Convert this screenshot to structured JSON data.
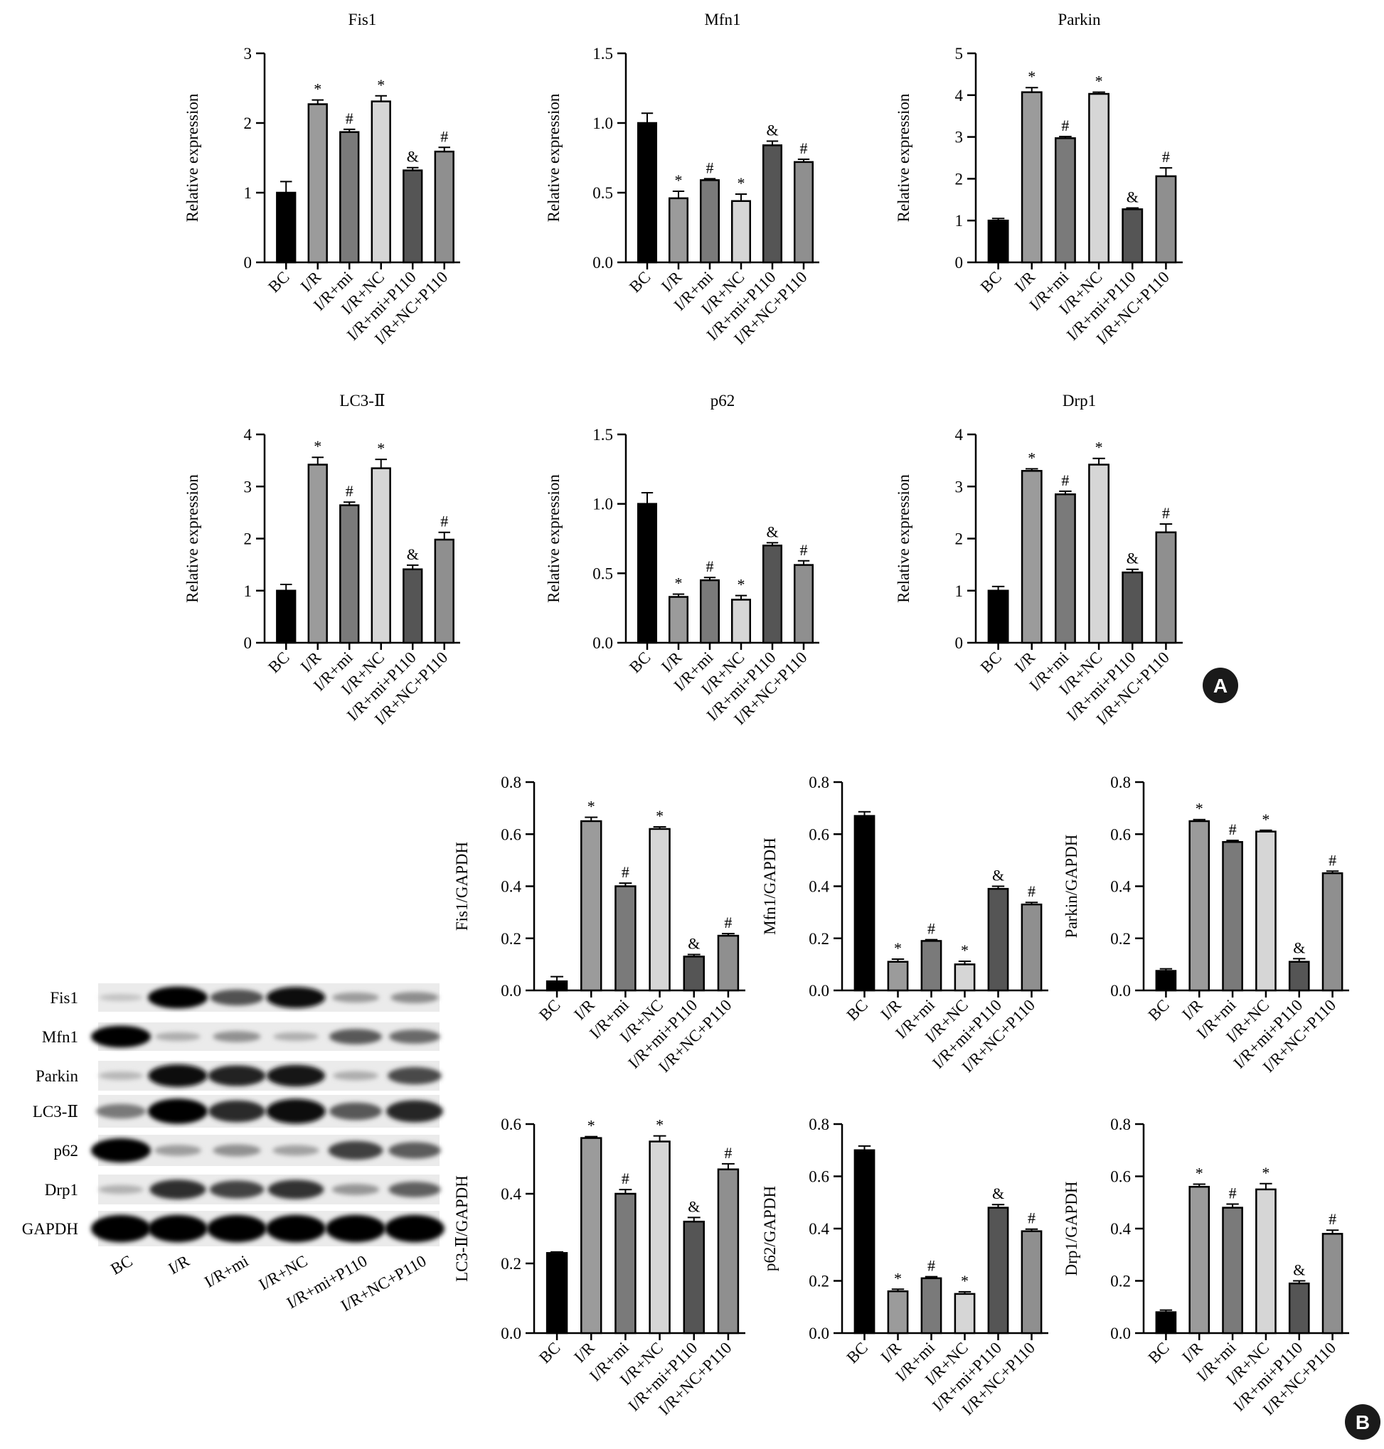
{
  "groups": [
    "BC",
    "I/R",
    "I/R+mi",
    "I/R+NC",
    "I/R+mi+P110",
    "I/R+NC+P110"
  ],
  "bar_colors": [
    "#000000",
    "#9b9b9b",
    "#7a7a7a",
    "#d6d6d6",
    "#555555",
    "#8f8f8f"
  ],
  "panel_labels": {
    "a": "A",
    "b": "B"
  },
  "blot": {
    "proteins": [
      "Fis1",
      "Mfn1",
      "Parkin",
      "LC3-Ⅱ",
      "p62",
      "Drp1",
      "GAPDH"
    ],
    "lanes": [
      "BC",
      "I/R",
      "I/R+mi",
      "I/R+NC",
      "I/R+mi+P110",
      "I/R+NC+P110"
    ],
    "intensity": [
      [
        0.05,
        1.0,
        0.62,
        0.95,
        0.25,
        0.32
      ],
      [
        1.0,
        0.16,
        0.3,
        0.15,
        0.58,
        0.5
      ],
      [
        0.11,
        0.97,
        0.86,
        0.92,
        0.16,
        0.66
      ],
      [
        0.42,
        1.0,
        0.82,
        0.98,
        0.58,
        0.83
      ],
      [
        1.0,
        0.24,
        0.3,
        0.22,
        0.7,
        0.57
      ],
      [
        0.14,
        0.8,
        0.69,
        0.78,
        0.28,
        0.55
      ],
      [
        1.0,
        1.0,
        1.0,
        1.0,
        1.0,
        1.0
      ]
    ]
  },
  "chart_data": [
    {
      "type": "bar",
      "title": "Fis1",
      "ylabel": "Relative expression",
      "ylim": [
        0,
        3
      ],
      "yticks": [
        "0",
        "1",
        "2",
        "3"
      ],
      "categories": [
        "BC",
        "I/R",
        "I/R+mi",
        "I/R+NC",
        "I/R+mi+P110",
        "I/R+NC+P110"
      ],
      "values": [
        1.0,
        2.27,
        1.87,
        2.31,
        1.32,
        1.59
      ],
      "errors": [
        0.16,
        0.06,
        0.04,
        0.08,
        0.04,
        0.06
      ],
      "marks": [
        "",
        "*",
        "#",
        "*",
        "&",
        "#"
      ]
    },
    {
      "type": "bar",
      "title": "Mfn1",
      "ylabel": "Relative expression",
      "ylim": [
        0,
        1.5
      ],
      "yticks": [
        "0.0",
        "0.5",
        "1.0",
        "1.5"
      ],
      "categories": [
        "BC",
        "I/R",
        "I/R+mi",
        "I/R+NC",
        "I/R+mi+P110",
        "I/R+NC+P110"
      ],
      "values": [
        1.0,
        0.46,
        0.59,
        0.44,
        0.84,
        0.72
      ],
      "errors": [
        0.07,
        0.05,
        0.01,
        0.05,
        0.03,
        0.02
      ],
      "marks": [
        "",
        "*",
        "#",
        "*",
        "&",
        "#"
      ]
    },
    {
      "type": "bar",
      "title": "Parkin",
      "ylabel": "Relative expression",
      "ylim": [
        0,
        5
      ],
      "yticks": [
        "0",
        "1",
        "2",
        "3",
        "4",
        "5"
      ],
      "categories": [
        "BC",
        "I/R",
        "I/R+mi",
        "I/R+NC",
        "I/R+mi+P110",
        "I/R+NC+P110"
      ],
      "values": [
        1.0,
        4.07,
        2.97,
        4.03,
        1.27,
        2.06
      ],
      "errors": [
        0.05,
        0.11,
        0.04,
        0.04,
        0.03,
        0.2
      ],
      "marks": [
        "",
        "*",
        "#",
        "*",
        "&",
        "#"
      ]
    },
    {
      "type": "bar",
      "title": "LC3-Ⅱ",
      "ylabel": "Relative expression",
      "ylim": [
        0,
        4
      ],
      "yticks": [
        "0",
        "1",
        "2",
        "3",
        "4"
      ],
      "categories": [
        "BC",
        "I/R",
        "I/R+mi",
        "I/R+NC",
        "I/R+mi+P110",
        "I/R+NC+P110"
      ],
      "values": [
        1.0,
        3.42,
        2.64,
        3.35,
        1.41,
        1.98
      ],
      "errors": [
        0.12,
        0.14,
        0.06,
        0.17,
        0.08,
        0.14
      ],
      "marks": [
        "",
        "*",
        "#",
        "*",
        "&",
        "#"
      ]
    },
    {
      "type": "bar",
      "title": "p62",
      "ylabel": "Relative expression",
      "ylim": [
        0,
        1.5
      ],
      "yticks": [
        "0.0",
        "0.5",
        "1.0",
        "1.5"
      ],
      "categories": [
        "BC",
        "I/R",
        "I/R+mi",
        "I/R+NC",
        "I/R+mi+P110",
        "I/R+NC+P110"
      ],
      "values": [
        1.0,
        0.33,
        0.45,
        0.31,
        0.7,
        0.56
      ],
      "errors": [
        0.08,
        0.02,
        0.02,
        0.03,
        0.02,
        0.03
      ],
      "marks": [
        "",
        "*",
        "#",
        "*",
        "&",
        "#"
      ]
    },
    {
      "type": "bar",
      "title": "Drp1",
      "ylabel": "Relative expression",
      "ylim": [
        0,
        4
      ],
      "yticks": [
        "0",
        "1",
        "2",
        "3",
        "4"
      ],
      "categories": [
        "BC",
        "I/R",
        "I/R+mi",
        "I/R+NC",
        "I/R+mi+P110",
        "I/R+NC+P110"
      ],
      "values": [
        1.0,
        3.3,
        2.85,
        3.42,
        1.35,
        2.12
      ],
      "errors": [
        0.08,
        0.04,
        0.06,
        0.12,
        0.06,
        0.16
      ],
      "marks": [
        "",
        "*",
        "#",
        "*",
        "&",
        "#"
      ]
    },
    {
      "type": "bar",
      "title": "",
      "ylabel": "Fis1/GAPDH",
      "ylim": [
        0,
        0.8
      ],
      "yticks": [
        "0.0",
        "0.2",
        "0.4",
        "0.6",
        "0.8"
      ],
      "categories": [
        "BC",
        "I/R",
        "I/R+mi",
        "I/R+NC",
        "I/R+mi+P110",
        "I/R+NC+P110"
      ],
      "values": [
        0.035,
        0.65,
        0.4,
        0.62,
        0.13,
        0.21
      ],
      "errors": [
        0.018,
        0.015,
        0.012,
        0.008,
        0.008,
        0.008
      ],
      "marks": [
        "",
        "*",
        "#",
        "*",
        "&",
        "#"
      ]
    },
    {
      "type": "bar",
      "title": "",
      "ylabel": "Mfn1/GAPDH",
      "ylim": [
        0,
        0.8
      ],
      "yticks": [
        "0.0",
        "0.2",
        "0.4",
        "0.6",
        "0.8"
      ],
      "categories": [
        "BC",
        "I/R",
        "I/R+mi",
        "I/R+NC",
        "I/R+mi+P110",
        "I/R+NC+P110"
      ],
      "values": [
        0.67,
        0.11,
        0.19,
        0.1,
        0.39,
        0.33
      ],
      "errors": [
        0.016,
        0.01,
        0.005,
        0.012,
        0.01,
        0.008
      ],
      "marks": [
        "",
        "*",
        "#",
        "*",
        "&",
        "#"
      ]
    },
    {
      "type": "bar",
      "title": "",
      "ylabel": "Parkin/GAPDH",
      "ylim": [
        0,
        0.8
      ],
      "yticks": [
        "0.0",
        "0.2",
        "0.4",
        "0.6",
        "0.8"
      ],
      "categories": [
        "BC",
        "I/R",
        "I/R+mi",
        "I/R+NC",
        "I/R+mi+P110",
        "I/R+NC+P110"
      ],
      "values": [
        0.075,
        0.65,
        0.57,
        0.61,
        0.11,
        0.45
      ],
      "errors": [
        0.008,
        0.006,
        0.006,
        0.005,
        0.012,
        0.008
      ],
      "marks": [
        "",
        "*",
        "#",
        "*",
        "&",
        "#"
      ]
    },
    {
      "type": "bar",
      "title": "",
      "ylabel": "LC3-Ⅱ/GAPDH",
      "ylim": [
        0,
        0.6
      ],
      "yticks": [
        "0.0",
        "0.2",
        "0.4",
        "0.6"
      ],
      "categories": [
        "BC",
        "I/R",
        "I/R+mi",
        "I/R+NC",
        "I/R+mi+P110",
        "I/R+NC+P110"
      ],
      "values": [
        0.23,
        0.56,
        0.4,
        0.55,
        0.32,
        0.47
      ],
      "errors": [
        0.003,
        0.004,
        0.012,
        0.016,
        0.012,
        0.016
      ],
      "marks": [
        "",
        "*",
        "#",
        "*",
        "&",
        "#"
      ]
    },
    {
      "type": "bar",
      "title": "",
      "ylabel": "p62/GAPDH",
      "ylim": [
        0,
        0.8
      ],
      "yticks": [
        "0.0",
        "0.2",
        "0.4",
        "0.6",
        "0.8"
      ],
      "categories": [
        "BC",
        "I/R",
        "I/R+mi",
        "I/R+NC",
        "I/R+mi+P110",
        "I/R+NC+P110"
      ],
      "values": [
        0.7,
        0.16,
        0.21,
        0.15,
        0.48,
        0.39
      ],
      "errors": [
        0.016,
        0.008,
        0.006,
        0.008,
        0.012,
        0.008
      ],
      "marks": [
        "",
        "*",
        "#",
        "*",
        "&",
        "#"
      ]
    },
    {
      "type": "bar",
      "title": "",
      "ylabel": "Drp1/GAPDH",
      "ylim": [
        0,
        0.8
      ],
      "yticks": [
        "0.0",
        "0.2",
        "0.4",
        "0.6",
        "0.8"
      ],
      "categories": [
        "BC",
        "I/R",
        "I/R+mi",
        "I/R+NC",
        "I/R+mi+P110",
        "I/R+NC+P110"
      ],
      "values": [
        0.08,
        0.56,
        0.48,
        0.55,
        0.19,
        0.38
      ],
      "errors": [
        0.008,
        0.01,
        0.014,
        0.022,
        0.01,
        0.014
      ],
      "marks": [
        "",
        "*",
        "#",
        "*",
        "&",
        "#"
      ]
    }
  ]
}
